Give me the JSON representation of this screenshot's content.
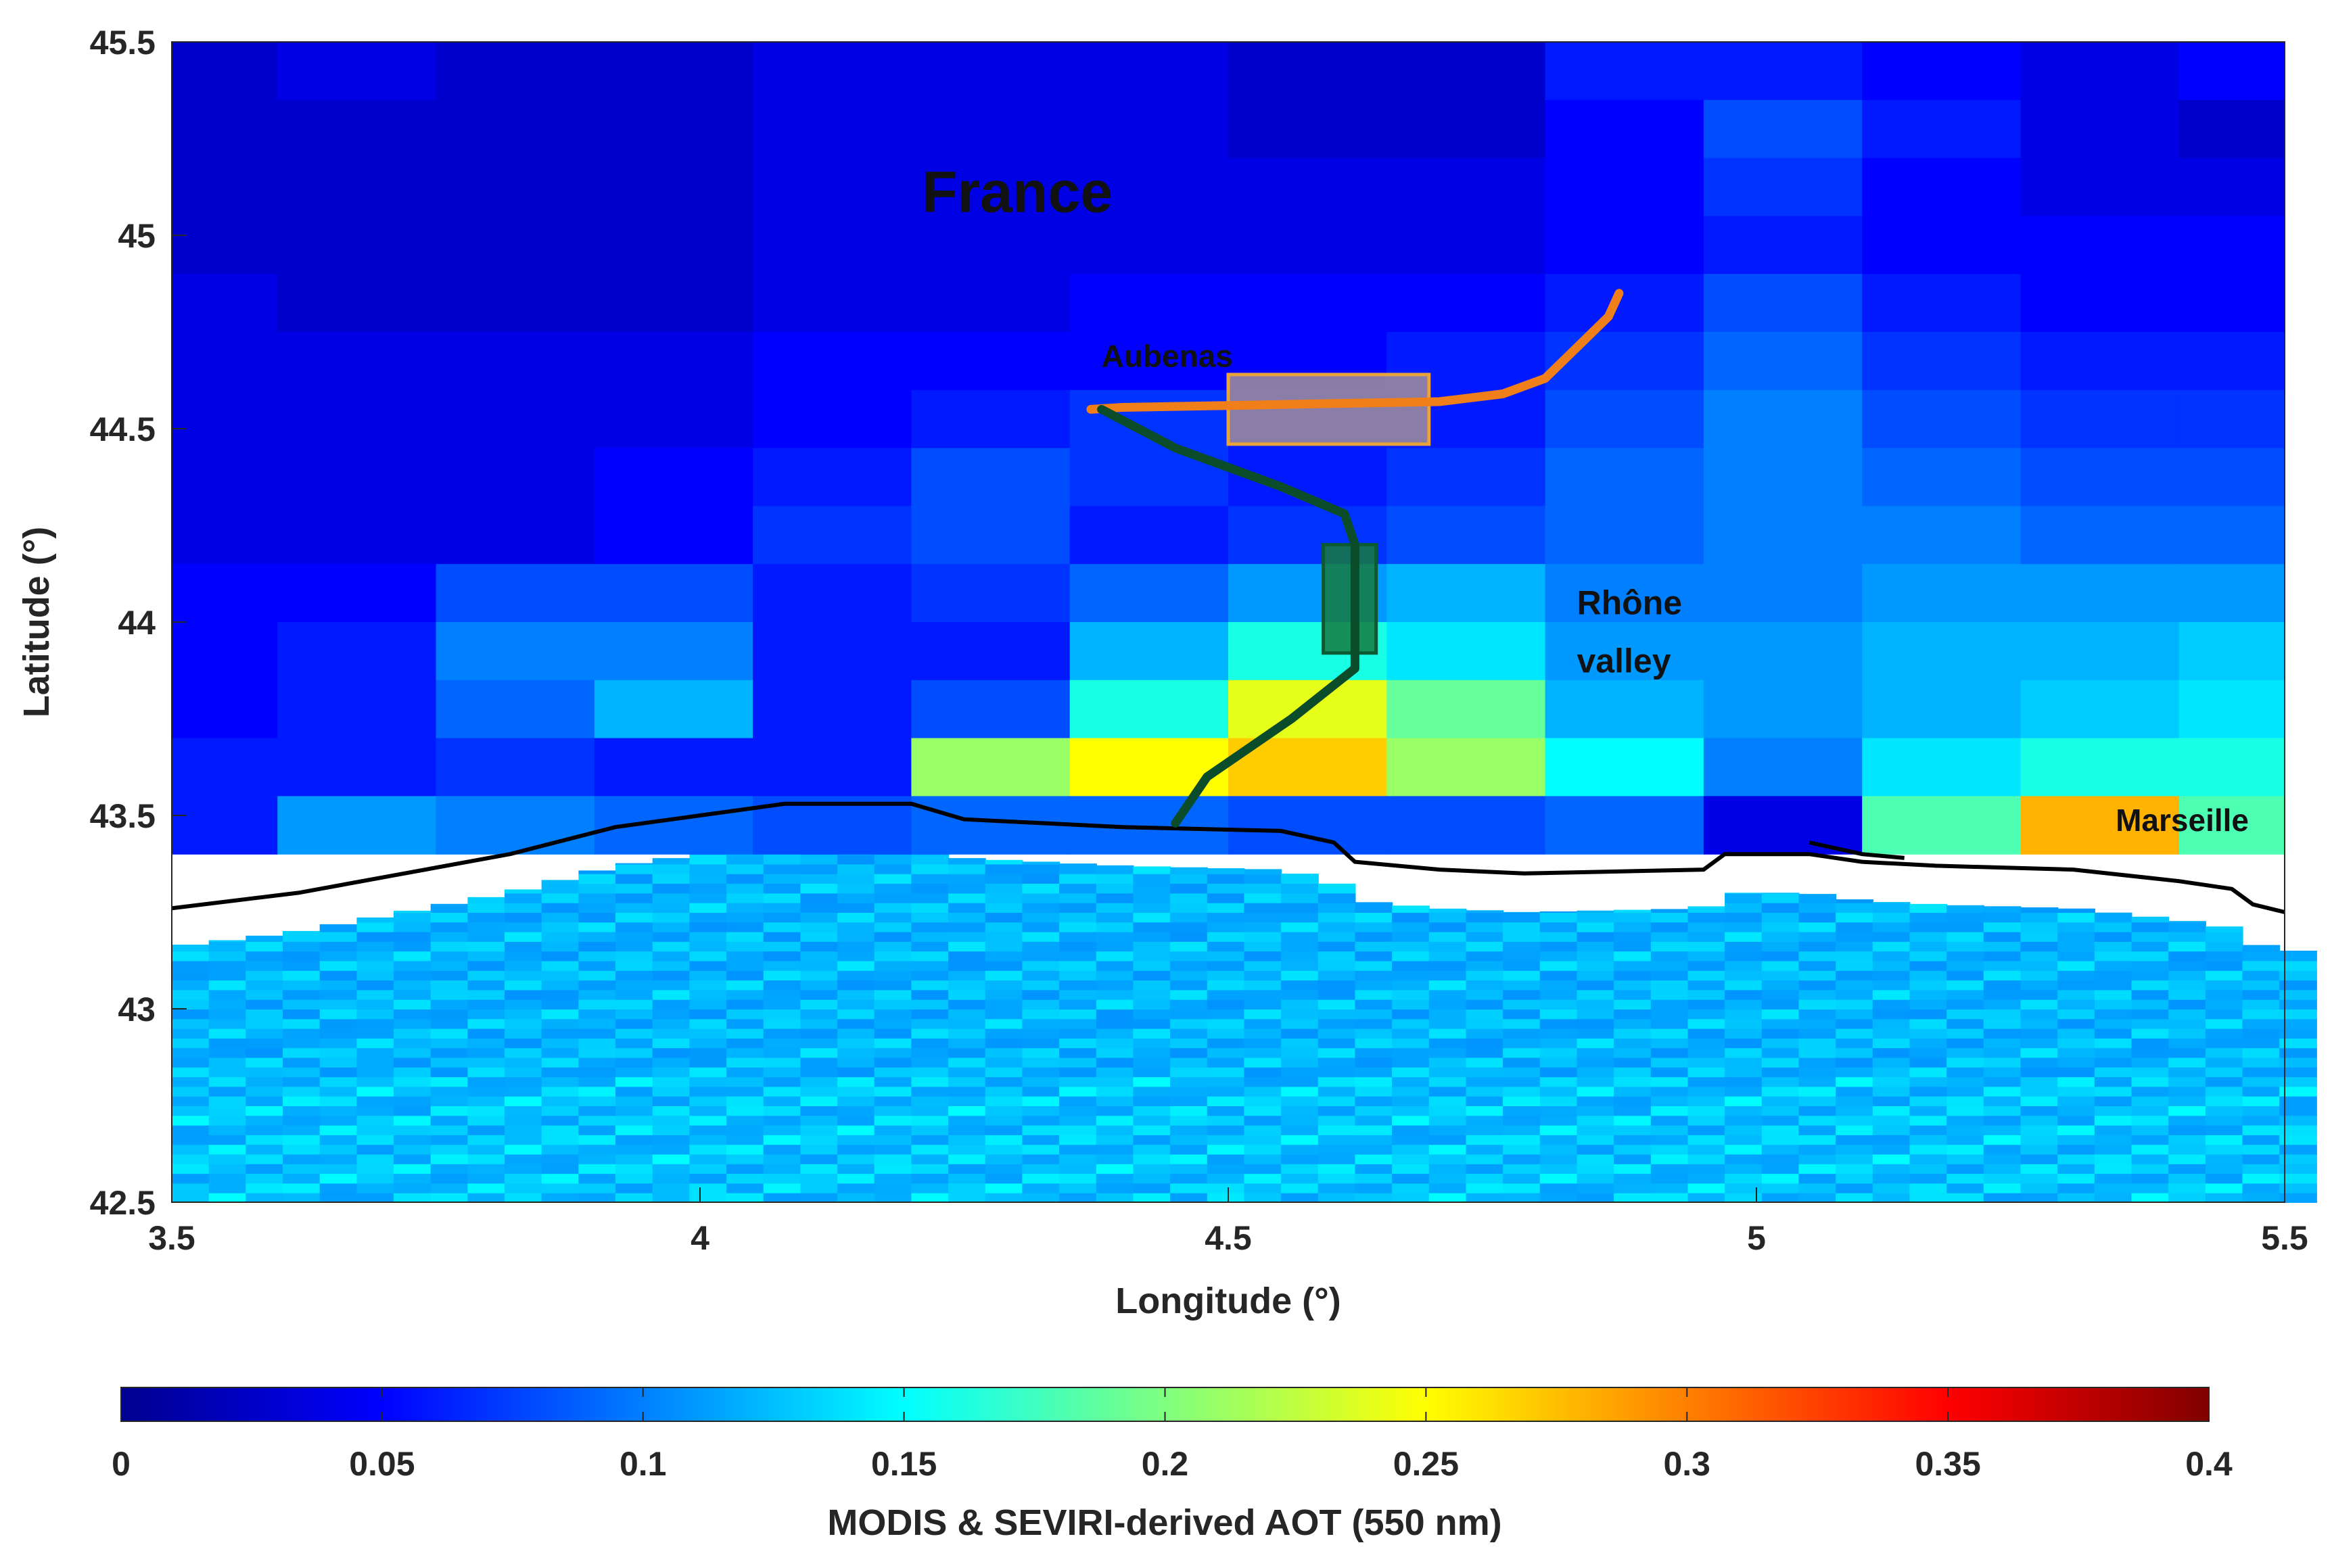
{
  "chart_data": {
    "type": "heatmap",
    "title": "",
    "xlabel": "Longitude (°)",
    "ylabel": "Latitude (°)",
    "xlim": [
      3.5,
      5.5
    ],
    "ylim": [
      42.5,
      45.5
    ],
    "x_ticks": [
      "3.5",
      "4",
      "4.5",
      "5",
      "5.5"
    ],
    "y_ticks": [
      "42.5",
      "43",
      "43.5",
      "44",
      "44.5",
      "45",
      "45.5"
    ],
    "colorbar": {
      "label": "MODIS & SEVIRI-derived AOT (550 nm)",
      "range": [
        0,
        0.4
      ],
      "ticks": [
        "0",
        "0.05",
        "0.1",
        "0.15",
        "0.2",
        "0.25",
        "0.3",
        "0.35",
        "0.4"
      ],
      "colormap": "jet"
    },
    "land_grid": {
      "lon_edges": [
        3.5,
        3.6,
        3.75,
        3.9,
        4.05,
        4.2,
        4.35,
        4.5,
        4.65,
        4.8,
        4.95,
        5.1,
        5.25,
        5.4,
        5.5
      ],
      "lat_edges": [
        45.5,
        45.35,
        45.2,
        45.05,
        44.9,
        44.75,
        44.6,
        44.45,
        44.3,
        44.15,
        44.0,
        43.85,
        43.7,
        43.55,
        43.4
      ],
      "aot": [
        [
          0.03,
          0.04,
          0.03,
          0.03,
          0.04,
          0.04,
          0.04,
          0.03,
          0.03,
          0.06,
          0.06,
          0.05,
          0.04,
          0.05
        ],
        [
          0.03,
          0.03,
          0.03,
          0.03,
          0.04,
          0.04,
          0.04,
          0.03,
          0.03,
          0.05,
          0.08,
          0.06,
          0.04,
          0.03
        ],
        [
          0.03,
          0.03,
          0.03,
          0.03,
          0.04,
          0.04,
          0.04,
          0.04,
          0.04,
          0.05,
          0.07,
          0.05,
          0.04,
          0.04
        ],
        [
          0.03,
          0.03,
          0.03,
          0.03,
          0.04,
          0.04,
          0.04,
          0.04,
          0.04,
          0.05,
          0.06,
          0.05,
          0.05,
          0.05
        ],
        [
          0.04,
          0.03,
          0.03,
          0.03,
          0.04,
          0.04,
          0.05,
          0.05,
          0.05,
          0.06,
          0.08,
          0.06,
          0.05,
          0.05
        ],
        [
          0.04,
          0.04,
          0.04,
          0.04,
          0.05,
          0.05,
          0.05,
          0.05,
          0.06,
          0.07,
          0.09,
          0.07,
          0.06,
          0.06
        ],
        [
          0.04,
          0.04,
          0.04,
          0.04,
          0.05,
          0.06,
          0.07,
          0.06,
          0.06,
          0.08,
          0.1,
          0.08,
          0.07,
          0.07
        ],
        [
          0.04,
          0.04,
          0.04,
          0.05,
          0.06,
          0.08,
          0.07,
          0.06,
          0.07,
          0.09,
          0.1,
          0.09,
          0.08,
          0.08
        ],
        [
          0.04,
          0.04,
          0.04,
          0.05,
          0.07,
          0.08,
          0.06,
          0.07,
          0.08,
          0.09,
          0.1,
          0.1,
          0.09,
          0.09
        ],
        [
          0.05,
          0.05,
          0.08,
          0.08,
          0.06,
          0.07,
          0.09,
          0.11,
          0.12,
          0.1,
          0.1,
          0.11,
          0.11,
          0.11
        ],
        [
          0.05,
          0.06,
          0.1,
          0.1,
          0.06,
          0.06,
          0.12,
          0.16,
          0.14,
          0.11,
          0.11,
          0.12,
          0.12,
          0.13
        ],
        [
          0.05,
          0.06,
          0.09,
          0.12,
          0.06,
          0.08,
          0.16,
          0.24,
          0.19,
          0.12,
          0.11,
          0.12,
          0.13,
          0.14
        ],
        [
          0.06,
          0.06,
          0.07,
          0.06,
          0.06,
          0.21,
          0.25,
          0.27,
          0.21,
          0.15,
          0.1,
          0.14,
          0.16,
          0.16
        ],
        [
          0.06,
          0.11,
          0.1,
          0.09,
          0.08,
          0.09,
          0.09,
          0.08,
          0.08,
          0.09,
          0.04,
          0.18,
          0.28,
          0.18
        ]
      ]
    },
    "sea_aot_range": [
      0.09,
      0.15
    ],
    "annotations": [
      {
        "text": "France",
        "lon": 4.21,
        "lat": 45.06,
        "size": "large"
      },
      {
        "text": "Aubenas",
        "lon": 4.38,
        "lat": 44.66,
        "size": "small"
      },
      {
        "text": "Rhône",
        "lon": 4.83,
        "lat": 44.02,
        "size": "medium"
      },
      {
        "text": "valley",
        "lon": 4.83,
        "lat": 43.87,
        "size": "medium"
      },
      {
        "text": "Marseille",
        "lon": 5.34,
        "lat": 43.46,
        "size": "small"
      }
    ],
    "flight_tracks": [
      {
        "color": "#f07f1a",
        "points": [
          [
            4.37,
            44.55
          ],
          [
            4.4,
            44.555
          ],
          [
            4.5,
            44.56
          ],
          [
            4.6,
            44.565
          ],
          [
            4.7,
            44.57
          ],
          [
            4.76,
            44.59
          ],
          [
            4.8,
            44.63
          ],
          [
            4.83,
            44.71
          ],
          [
            4.86,
            44.79
          ],
          [
            4.87,
            44.85
          ]
        ]
      },
      {
        "color": "#0b4d2b",
        "points": [
          [
            4.38,
            44.55
          ],
          [
            4.45,
            44.45
          ],
          [
            4.55,
            44.35
          ],
          [
            4.61,
            44.28
          ],
          [
            4.62,
            44.2
          ],
          [
            4.62,
            44.05
          ],
          [
            4.62,
            43.88
          ],
          [
            4.56,
            43.75
          ],
          [
            4.48,
            43.6
          ],
          [
            4.45,
            43.48
          ]
        ]
      }
    ],
    "boxes": [
      {
        "color": "#e8a33b",
        "fill": "#a2909a",
        "lon": [
          4.5,
          4.69
        ],
        "lat": [
          44.46,
          44.64
        ]
      },
      {
        "color": "#0b5a32",
        "fill": "#167a3e",
        "lon": [
          4.59,
          4.64
        ],
        "lat": [
          43.92,
          44.2
        ]
      }
    ],
    "coastline": [
      [
        3.5,
        43.26
      ],
      [
        3.62,
        43.3
      ],
      [
        3.72,
        43.35
      ],
      [
        3.82,
        43.4
      ],
      [
        3.92,
        43.47
      ],
      [
        4.0,
        43.5
      ],
      [
        4.08,
        43.53
      ],
      [
        4.2,
        43.53
      ],
      [
        4.25,
        43.49
      ],
      [
        4.4,
        43.47
      ],
      [
        4.55,
        43.46
      ],
      [
        4.6,
        43.43
      ],
      [
        4.62,
        43.38
      ],
      [
        4.7,
        43.36
      ],
      [
        4.78,
        43.35
      ],
      [
        4.95,
        43.36
      ],
      [
        4.97,
        43.4
      ],
      [
        5.05,
        43.4
      ],
      [
        5.1,
        43.38
      ],
      [
        5.17,
        43.37
      ],
      [
        5.3,
        43.36
      ],
      [
        5.4,
        43.33
      ],
      [
        5.45,
        43.31
      ],
      [
        5.47,
        43.27
      ],
      [
        5.5,
        43.25
      ]
    ],
    "coastline_branch": [
      [
        5.05,
        43.43
      ],
      [
        5.1,
        43.4
      ],
      [
        5.14,
        43.39
      ]
    ]
  }
}
